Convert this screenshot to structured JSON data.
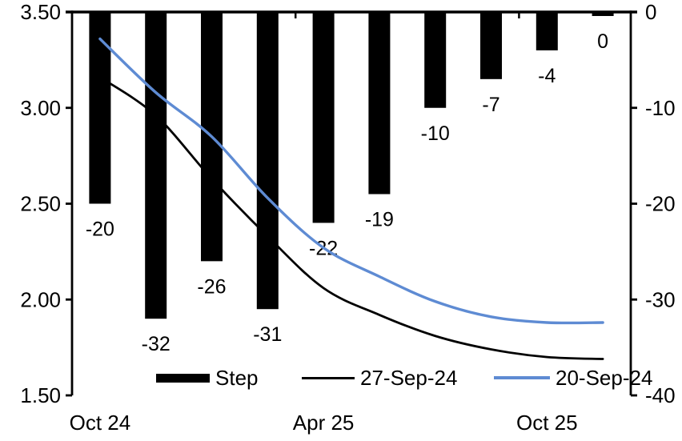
{
  "chart_data": {
    "type": "combo-bar-line",
    "background": "#ffffff",
    "grid": false,
    "data_labels": true,
    "n_categories": 10,
    "x_axis": {
      "tick_labels": [
        {
          "label": "Oct 24",
          "category_index": 0
        },
        {
          "label": "Apr 25",
          "category_index": 4
        },
        {
          "label": "Oct 25",
          "category_index": 8
        }
      ]
    },
    "left_axis": {
      "ticks": [
        "3.50",
        "3.00",
        "2.50",
        "2.00",
        "1.50"
      ],
      "min": 1.5,
      "max": 3.5,
      "measures": "lines"
    },
    "right_axis": {
      "ticks": [
        "0",
        "-10",
        "-20",
        "-30",
        "-40"
      ],
      "min": -40,
      "max": 0,
      "measures": "bars"
    },
    "bar_series": {
      "name": "Step",
      "color": "#000000",
      "axis": "right",
      "values": [
        -20,
        -32,
        -26,
        -31,
        -22,
        -19,
        -10,
        -7,
        -4,
        0
      ],
      "value_labels": [
        "-20",
        "-32",
        "-26",
        "-31",
        "-22",
        "-19",
        "-10",
        "-7",
        "-4",
        "0"
      ]
    },
    "line_series": [
      {
        "name": "27-Sep-24",
        "color": "#000000",
        "axis": "left",
        "values": [
          3.16,
          2.96,
          2.63,
          2.33,
          2.06,
          1.92,
          1.81,
          1.74,
          1.7,
          1.69
        ]
      },
      {
        "name": "20-Sep-24",
        "color": "#5E8BD3",
        "axis": "left",
        "values": [
          3.36,
          3.08,
          2.85,
          2.53,
          2.27,
          2.12,
          1.99,
          1.91,
          1.88,
          1.88
        ]
      }
    ],
    "legend": {
      "position": "bottom-inside",
      "items": [
        {
          "label": "Step",
          "swatch": "bar",
          "color": "#000000"
        },
        {
          "label": "27-Sep-24",
          "swatch": "line",
          "color": "#000000"
        },
        {
          "label": "20-Sep-24",
          "swatch": "line",
          "color": "#5E8BD3"
        }
      ]
    }
  }
}
